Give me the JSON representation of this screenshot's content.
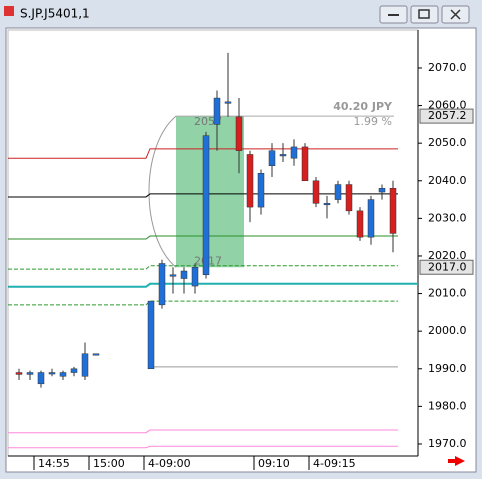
{
  "window_title": "S.JP.J5401,1",
  "chart_data": {
    "type": "candlestick",
    "categories": [
      null,
      null,
      "14:55",
      null,
      null,
      null,
      null,
      "15:00",
      null,
      null,
      null,
      null,
      "4-09:00",
      null,
      null,
      null,
      null,
      null,
      null,
      null,
      null,
      null,
      "09:10",
      null,
      null,
      null,
      null,
      "4-09:15",
      null,
      null,
      null,
      null,
      null,
      null,
      null
    ],
    "open": [
      1989,
      1988.5,
      1986,
      1989,
      1988,
      1989,
      1988,
      1994,
      null,
      null,
      null,
      null,
      1990,
      2007,
      2015,
      2014,
      2012,
      2015,
      2055,
      2061,
      2057,
      2047,
      2033,
      2044,
      2047,
      2046,
      2049,
      2040,
      2034,
      2035,
      2039,
      2032,
      2025,
      2037,
      2038
    ],
    "high": [
      1990,
      1989.5,
      1989.5,
      1990,
      1989.5,
      1990.5,
      1997,
      1994,
      null,
      null,
      null,
      null,
      2008,
      2019,
      2017,
      2017,
      2018,
      2053,
      2064,
      2074,
      2062,
      2048,
      2043,
      2050,
      2050,
      2051,
      2050,
      2041,
      2036,
      2040,
      2040,
      2033,
      2036,
      2039,
      2040
    ],
    "low": [
      1987,
      1987,
      1985,
      1988,
      1987,
      1988,
      1987,
      1994,
      null,
      null,
      null,
      null,
      1990,
      2006,
      2010,
      2010,
      2010,
      2014,
      2048,
      2057,
      2042,
      2029,
      2031,
      2041,
      2045,
      2044,
      2040,
      2033,
      2030,
      2034,
      2031,
      2024,
      2023,
      2035,
      2021
    ],
    "close": [
      1988.5,
      1989,
      1989,
      1989,
      1989,
      1990,
      1994,
      1994,
      null,
      null,
      null,
      null,
      2008,
      2018,
      2015,
      2016,
      2017,
      2052,
      2062,
      2061,
      2048,
      2033,
      2042,
      2048,
      2047,
      2049,
      2040,
      2034,
      2034,
      2039,
      2032,
      2025,
      2035,
      2038,
      2026
    ],
    "up_color": "#1f6fd6",
    "down_color": "#d62020",
    "wick_color": "#333333",
    "ylim": [
      1966.8,
      2080.1
    ],
    "yticks": [
      {
        "value": 1970,
        "label": "1970.0"
      },
      {
        "value": 1980,
        "label": "1980.0"
      },
      {
        "value": 1990,
        "label": "1990.0"
      },
      {
        "value": 2000,
        "label": "2000.0"
      },
      {
        "value": 2010,
        "label": "2010.0"
      },
      {
        "value": 2020,
        "label": "2020.0"
      },
      {
        "value": 2030,
        "label": "2030.0"
      },
      {
        "value": 2040,
        "label": "2040.0"
      },
      {
        "value": 2050,
        "label": "2050.0"
      },
      {
        "value": 2060,
        "label": "2060.0"
      },
      {
        "value": 2070,
        "label": "2070.0"
      }
    ],
    "price_markers": [
      {
        "value": 2057.2,
        "label": "2057.2"
      },
      {
        "value": 2017,
        "label": "2017.0"
      }
    ],
    "lines": [
      {
        "color": "#cc2222",
        "values": [
          2046,
          2048.5
        ]
      },
      {
        "color": "#000000",
        "values": [
          2035.7,
          2036.5
        ]
      },
      {
        "color": "#2a8f2a",
        "values": [
          2024.5,
          2025.3
        ]
      },
      {
        "color": "#2a9a2a",
        "dash": true,
        "values": [
          2016.5,
          2017.4
        ]
      },
      {
        "color": "#2a9a2a",
        "dash": true,
        "values": [
          2007,
          2008
        ]
      },
      {
        "color": "#20b0b0",
        "values": [
          2011.8,
          2012.6
        ]
      },
      {
        "color": "#999999",
        "values": [
          null,
          1990.5
        ]
      },
      {
        "color": "#ff88dd",
        "values": [
          1973,
          1973.7
        ]
      },
      {
        "color": "#ff88dd",
        "values": [
          1969,
          1969.4
        ]
      }
    ],
    "measure": {
      "from": 2017,
      "to": 2057.2,
      "color": "#6cc48a",
      "label": "40.20 JPY",
      "pct": "1.99 %",
      "top_label": "2057",
      "bottom_label": "2017"
    }
  }
}
